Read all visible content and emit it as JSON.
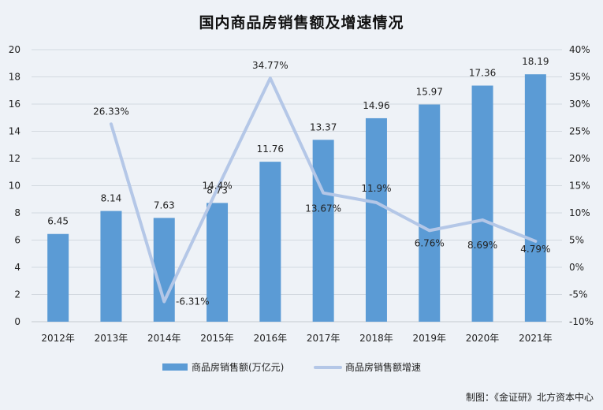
{
  "chart_data": {
    "type": "bar+line",
    "title": "国内商品房销售额及增速情况",
    "categories": [
      "2012年",
      "2013年",
      "2014年",
      "2015年",
      "2016年",
      "2017年",
      "2018年",
      "2019年",
      "2020年",
      "2021年"
    ],
    "series": [
      {
        "name": "商品房销售额(万亿元)",
        "type": "bar",
        "axis": "left",
        "color": "#5b9bd5",
        "values": [
          6.45,
          8.14,
          7.63,
          8.73,
          11.76,
          13.37,
          14.96,
          15.97,
          17.36,
          18.19
        ],
        "labels": [
          "6.45",
          "8.14",
          "7.63",
          "8.73",
          "11.76",
          "13.37",
          "14.96",
          "15.97",
          "17.36",
          "18.19"
        ]
      },
      {
        "name": "商品房销售额增速",
        "type": "line",
        "axis": "right",
        "color": "#b4c7e7",
        "values": [
          null,
          26.33,
          -6.31,
          14.4,
          34.77,
          13.67,
          11.9,
          6.76,
          8.69,
          4.79
        ],
        "labels": [
          "",
          "26.33%",
          "-6.31%",
          "14.4%",
          "34.77%",
          "13.67%",
          "11.9%",
          "6.76%",
          "8.69%",
          "4.79%"
        ]
      }
    ],
    "left_axis": {
      "min": 0,
      "max": 20,
      "step": 2,
      "ticks": [
        "0",
        "2",
        "4",
        "6",
        "8",
        "10",
        "12",
        "14",
        "16",
        "18",
        "20"
      ]
    },
    "right_axis": {
      "min": -10,
      "max": 40,
      "step": 5,
      "ticks": [
        "-10%",
        "-5%",
        "0%",
        "5%",
        "10%",
        "15%",
        "20%",
        "25%",
        "30%",
        "35%",
        "40%"
      ]
    },
    "grid": true,
    "legend_position": "bottom"
  },
  "source": "制图：《金证研》北方资本中心"
}
